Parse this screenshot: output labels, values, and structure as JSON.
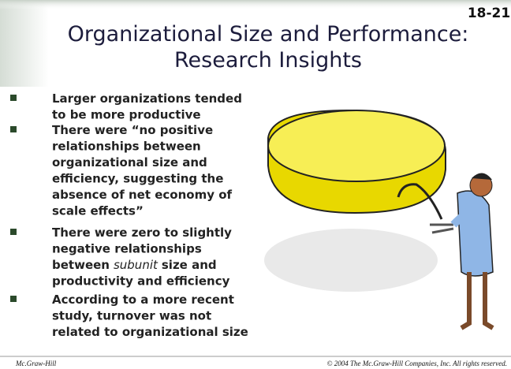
{
  "slide_number": "18-21",
  "title": [
    "Organizational Size and Performance:",
    "Research Insights"
  ],
  "bullets": [
    {
      "lines": [
        "Larger organizations tended",
        "to be more productive"
      ]
    },
    {
      "lines": [
        "There were “no positive",
        "relationships between",
        "organizational size and",
        "efficiency, suggesting the",
        "absence of net economy of",
        "scale effects”"
      ]
    },
    {
      "lines": [
        "There were zero to slightly",
        "negative relationships",
        [
          "between",
          {
            "text": "subunit",
            "italic": true
          },
          "size and"
        ],
        "productivity and efficiency"
      ]
    },
    {
      "lines": [
        "According to a more recent",
        "study, turnover was not",
        "related to organizational size"
      ]
    }
  ],
  "footer": {
    "left": "Mc.Graw-Hill",
    "right": "© 2004 The Mc.Graw-Hill Companies, Inc. All rights reserved."
  }
}
